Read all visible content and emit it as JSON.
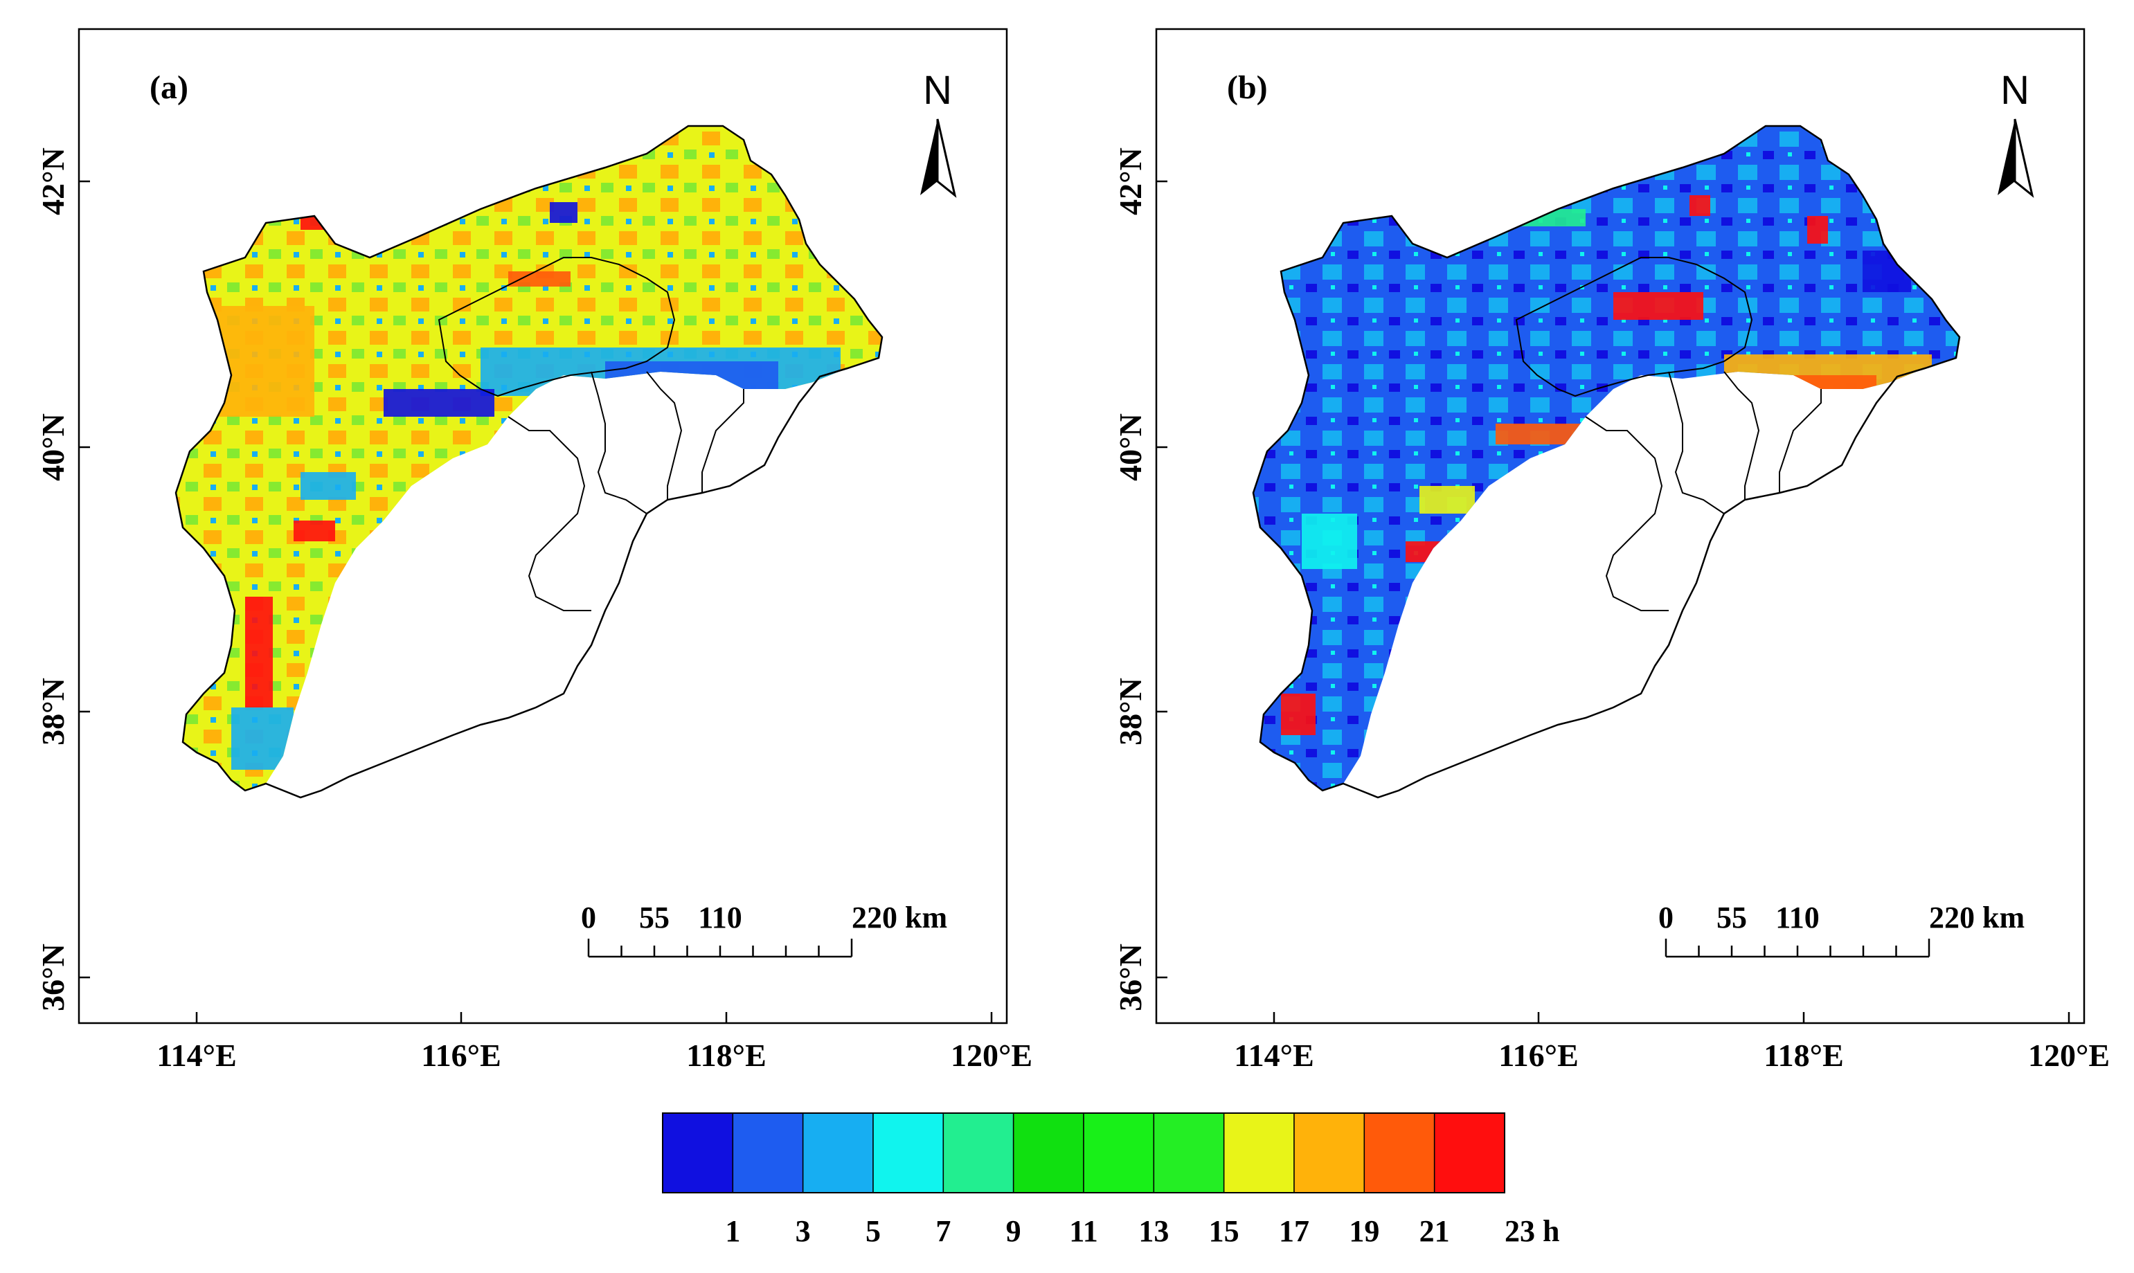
{
  "figure": {
    "colorbar": {
      "colors": [
        "#1010e0",
        "#1e5cf0",
        "#17aef2",
        "#10f4ee",
        "#22ee90",
        "#10e010",
        "#18f018",
        "#24ee24",
        "#e8f418",
        "#ffb20a",
        "#ff5a0a",
        "#ff0e0e"
      ],
      "tick_labels": [
        "1",
        "3",
        "5",
        "7",
        "9",
        "11",
        "13",
        "15",
        "17",
        "19",
        "21",
        "23 h"
      ]
    },
    "panels": [
      {
        "label": "(a)",
        "north": "N",
        "x_ticks": [
          "114°E",
          "116°E",
          "118°E",
          "120°E"
        ],
        "y_ticks": [
          "42°N",
          "40°N",
          "38°N",
          "36°N"
        ],
        "scale_labels": [
          "0",
          "55",
          "110",
          "220 km"
        ],
        "dominant_colors": [
          "#e8f418",
          "#ffb20a",
          "#17aef2"
        ]
      },
      {
        "label": "(b)",
        "north": "N",
        "x_ticks": [
          "114°E",
          "116°E",
          "118°E",
          "120°E"
        ],
        "y_ticks": [
          "42°N",
          "40°N",
          "38°N",
          "36°N"
        ],
        "scale_labels": [
          "0",
          "55",
          "110",
          "220 km"
        ],
        "dominant_colors": [
          "#1e5cf0",
          "#17aef2",
          "#ffb20a"
        ]
      }
    ]
  }
}
